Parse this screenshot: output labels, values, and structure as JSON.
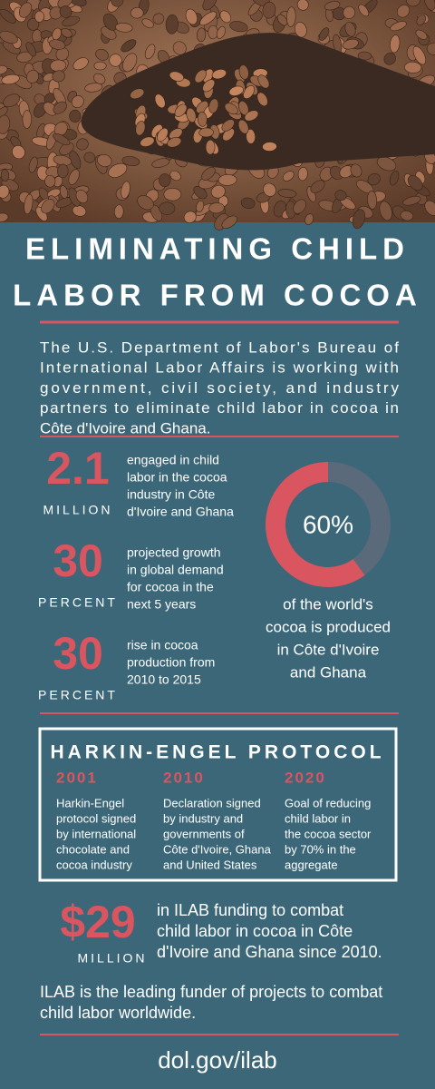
{
  "header": {
    "title_lines": [
      "ELIMINATING CHILD",
      "LABOR FROM COCOA"
    ]
  },
  "intro_lines": [
    "The U.S. Department of Labor's Bureau of",
    "International Labor Affairs is working with",
    "government, civil society, and industry",
    "partners to eliminate child labor in cocoa in",
    "Côte d'Ivoire and Ghana."
  ],
  "stats": [
    {
      "value": "2.1",
      "unit": "MILLION",
      "lines": [
        "engaged in child",
        "labor in the cocoa",
        "industry in Côte",
        "d'Ivoire and Ghana"
      ]
    },
    {
      "value": "30",
      "unit": "PERCENT",
      "lines": [
        "projected growth",
        "in global demand",
        "for cocoa in the",
        "next 5 years"
      ]
    },
    {
      "value": "30",
      "unit": "PERCENT",
      "lines": [
        "rise in cocoa",
        "production from",
        "2010 to 2015"
      ]
    }
  ],
  "donut": {
    "value": 60,
    "label": "60%",
    "color": "#d9555f",
    "rest_color": "#5b6a7a",
    "caption_lines": [
      "of the world's",
      "cocoa is produced",
      "in Côte d'Ivoire",
      "and Ghana"
    ]
  },
  "protocol": {
    "title": "HARKIN-ENGEL PROTOCOL",
    "milestones": [
      {
        "year": "2001",
        "lines": [
          "Harkin-Engel",
          "protocol signed",
          "by international",
          "chocolate and",
          "cocoa industry"
        ]
      },
      {
        "year": "2010",
        "lines": [
          "Declaration signed",
          "by industry and",
          "governments of",
          "Côte d'Ivoire, Ghana",
          "and United States"
        ]
      },
      {
        "year": "2020",
        "lines": [
          "Goal of reducing",
          "child labor in",
          "the cocoa sector",
          "by 70% in the",
          "aggregate"
        ]
      }
    ]
  },
  "funding": {
    "value": "$29",
    "unit": "MILLION",
    "lines": [
      "in ILAB funding to combat",
      "child labor in cocoa in Côte",
      "d'Ivoire and Ghana since 2010."
    ]
  },
  "note_lines": [
    "ILAB is the leading funder of projects to combat",
    "child labor worldwide."
  ],
  "url": "dol.gov/ilab"
}
